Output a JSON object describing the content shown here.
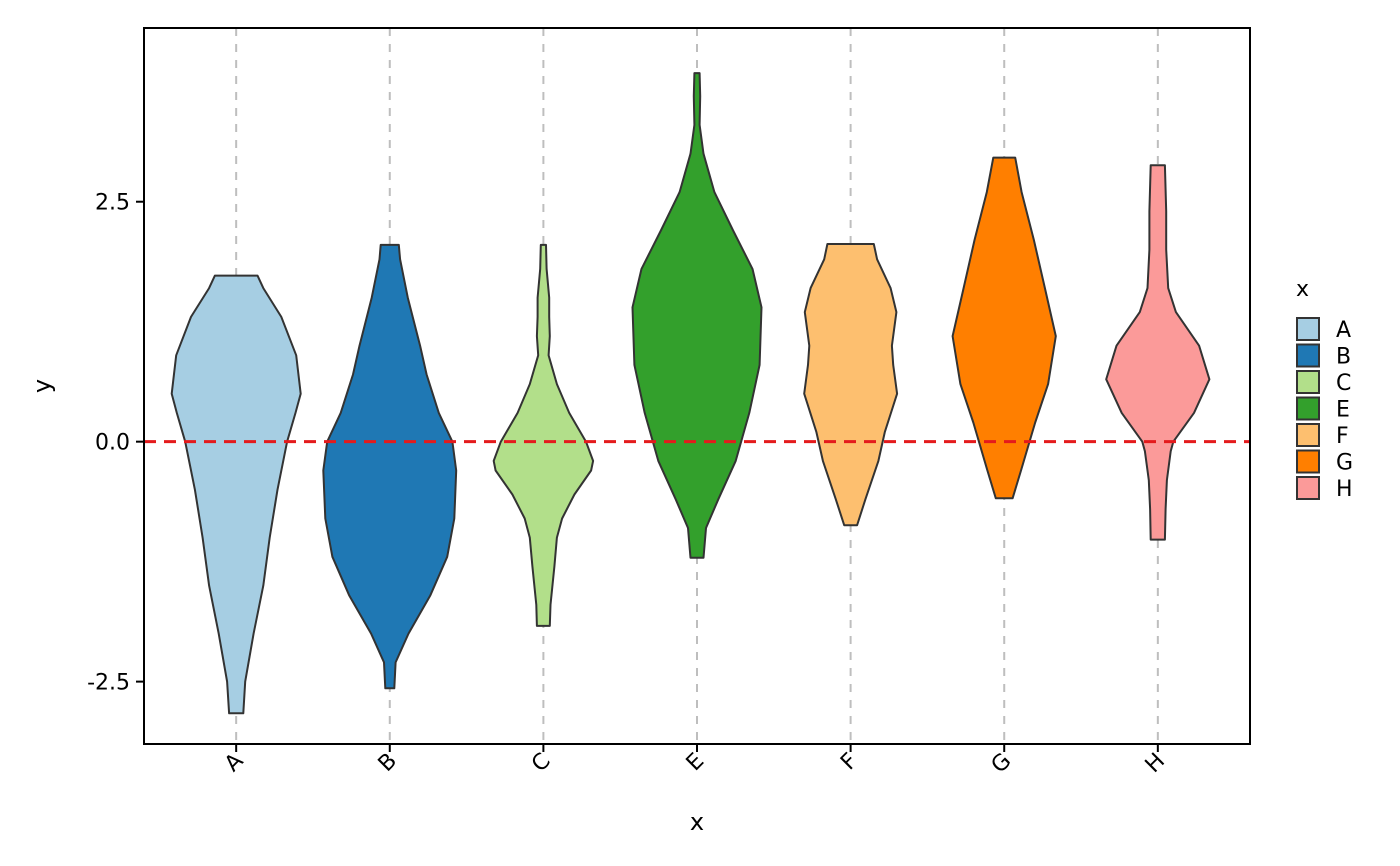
{
  "chart_data": {
    "type": "violin",
    "title": "",
    "xlabel": "x",
    "ylabel": "y",
    "ylim": [
      -3.15,
      4.31
    ],
    "y_ticks": [
      -2.5,
      0.0,
      2.5
    ],
    "y_tick_labels": [
      "-2.5",
      "0.0",
      "2.5"
    ],
    "categories": [
      "A",
      "B",
      "C",
      "E",
      "F",
      "G",
      "H"
    ],
    "reference_line": {
      "y": 0.0,
      "color": "#E41A1C",
      "style": "dashed"
    },
    "grid": {
      "x_major": true,
      "y_major": false
    },
    "series": [
      {
        "name": "A",
        "color": "#A6CEE3",
        "min": -2.83,
        "max": 1.73,
        "density": [
          [
            -2.83,
            0.11
          ],
          [
            -2.5,
            0.14
          ],
          [
            -2.0,
            0.27
          ],
          [
            -1.5,
            0.42
          ],
          [
            -1.0,
            0.52
          ],
          [
            -0.5,
            0.64
          ],
          [
            0.0,
            0.79
          ],
          [
            0.3,
            0.92
          ],
          [
            0.5,
            1.0
          ],
          [
            0.9,
            0.93
          ],
          [
            1.3,
            0.7
          ],
          [
            1.6,
            0.42
          ],
          [
            1.73,
            0.33
          ]
        ]
      },
      {
        "name": "B",
        "color": "#1F78B4",
        "min": -2.57,
        "max": 2.05,
        "density": [
          [
            -2.57,
            0.07
          ],
          [
            -2.3,
            0.09
          ],
          [
            -2.0,
            0.29
          ],
          [
            -1.6,
            0.63
          ],
          [
            -1.2,
            0.89
          ],
          [
            -0.8,
            1.0
          ],
          [
            -0.3,
            1.03
          ],
          [
            0.0,
            0.97
          ],
          [
            0.3,
            0.76
          ],
          [
            0.7,
            0.57
          ],
          [
            1.0,
            0.47
          ],
          [
            1.5,
            0.28
          ],
          [
            1.9,
            0.16
          ],
          [
            2.05,
            0.14
          ]
        ]
      },
      {
        "name": "C",
        "color": "#B2DF8A",
        "min": -1.92,
        "max": 2.05,
        "density": [
          [
            -1.92,
            0.1
          ],
          [
            -1.7,
            0.11
          ],
          [
            -1.3,
            0.17
          ],
          [
            -1.0,
            0.21
          ],
          [
            -0.8,
            0.29
          ],
          [
            -0.55,
            0.48
          ],
          [
            -0.3,
            0.74
          ],
          [
            -0.2,
            0.77
          ],
          [
            0.0,
            0.66
          ],
          [
            0.3,
            0.4
          ],
          [
            0.6,
            0.21
          ],
          [
            0.9,
            0.08
          ],
          [
            1.1,
            0.1
          ],
          [
            1.3,
            0.09
          ],
          [
            1.5,
            0.09
          ],
          [
            1.8,
            0.05
          ],
          [
            2.05,
            0.04
          ]
        ]
      },
      {
        "name": "E",
        "color": "#33A02C",
        "min": -1.21,
        "max": 3.84,
        "density": [
          [
            -1.21,
            0.1
          ],
          [
            -0.9,
            0.14
          ],
          [
            -0.6,
            0.33
          ],
          [
            -0.2,
            0.6
          ],
          [
            0.3,
            0.81
          ],
          [
            0.8,
            0.97
          ],
          [
            1.4,
            1.0
          ],
          [
            1.8,
            0.86
          ],
          [
            2.2,
            0.56
          ],
          [
            2.6,
            0.27
          ],
          [
            3.0,
            0.1
          ],
          [
            3.3,
            0.04
          ],
          [
            3.6,
            0.05
          ],
          [
            3.84,
            0.04
          ]
        ]
      },
      {
        "name": "F",
        "color": "#FDBF6F",
        "min": -0.87,
        "max": 2.06,
        "density": [
          [
            -0.87,
            0.1
          ],
          [
            -0.6,
            0.23
          ],
          [
            -0.2,
            0.43
          ],
          [
            0.1,
            0.53
          ],
          [
            0.5,
            0.72
          ],
          [
            0.8,
            0.66
          ],
          [
            1.0,
            0.64
          ],
          [
            1.35,
            0.71
          ],
          [
            1.6,
            0.62
          ],
          [
            1.9,
            0.41
          ],
          [
            2.06,
            0.36
          ]
        ]
      },
      {
        "name": "G",
        "color": "#FF7F00",
        "min": -0.59,
        "max": 2.96,
        "density": [
          [
            -0.59,
            0.13
          ],
          [
            -0.3,
            0.26
          ],
          [
            0.2,
            0.48
          ],
          [
            0.6,
            0.68
          ],
          [
            1.1,
            0.8
          ],
          [
            1.6,
            0.63
          ],
          [
            2.1,
            0.46
          ],
          [
            2.6,
            0.27
          ],
          [
            2.96,
            0.17
          ]
        ]
      },
      {
        "name": "H",
        "color": "#FB9A99",
        "min": -1.02,
        "max": 2.88,
        "density": [
          [
            -1.02,
            0.11
          ],
          [
            -0.7,
            0.12
          ],
          [
            -0.4,
            0.14
          ],
          [
            -0.1,
            0.2
          ],
          [
            0.0,
            0.24
          ],
          [
            0.3,
            0.56
          ],
          [
            0.65,
            0.8
          ],
          [
            1.0,
            0.64
          ],
          [
            1.35,
            0.28
          ],
          [
            1.6,
            0.16
          ],
          [
            2.0,
            0.13
          ],
          [
            2.4,
            0.13
          ],
          [
            2.88,
            0.11
          ]
        ]
      }
    ],
    "legend": {
      "title": "x",
      "placement": "right",
      "entries": [
        "A",
        "B",
        "C",
        "E",
        "F",
        "G",
        "H"
      ]
    }
  }
}
